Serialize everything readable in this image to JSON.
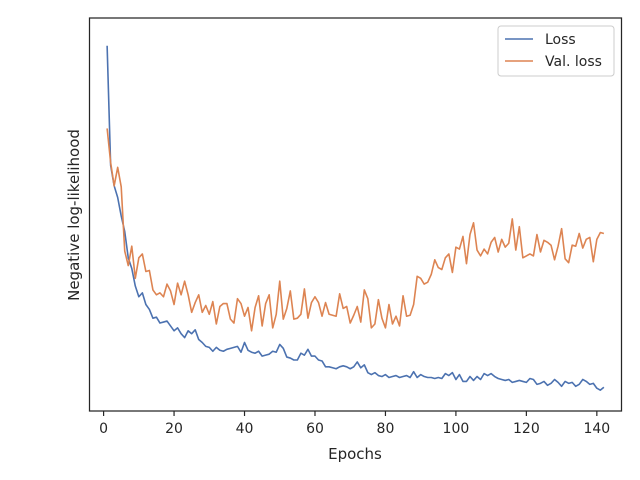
{
  "chart_data": {
    "type": "line",
    "title": "",
    "xlabel": "Epochs",
    "ylabel": "Negative log-likelihood",
    "xlim": [
      -4,
      147
    ],
    "ylim": [
      0,
      1
    ],
    "xticks": [
      0,
      20,
      40,
      60,
      80,
      100,
      120,
      140
    ],
    "yticks_shown": false,
    "grid": false,
    "legend_position": "top-right",
    "colors": {
      "Loss": "#4c72b0",
      "Val. loss": "#dd8452"
    },
    "x": [
      1,
      2,
      3,
      4,
      5,
      6,
      7,
      8,
      9,
      10,
      11,
      12,
      13,
      14,
      15,
      16,
      17,
      18,
      19,
      20,
      21,
      22,
      23,
      24,
      25,
      26,
      27,
      28,
      29,
      30,
      31,
      32,
      33,
      34,
      35,
      36,
      37,
      38,
      39,
      40,
      41,
      42,
      43,
      44,
      45,
      46,
      47,
      48,
      49,
      50,
      51,
      52,
      53,
      54,
      55,
      56,
      57,
      58,
      59,
      60,
      61,
      62,
      63,
      64,
      65,
      66,
      67,
      68,
      69,
      70,
      71,
      72,
      73,
      74,
      75,
      76,
      77,
      78,
      79,
      80,
      81,
      82,
      83,
      84,
      85,
      86,
      87,
      88,
      89,
      90,
      91,
      92,
      93,
      94,
      95,
      96,
      97,
      98,
      99,
      100,
      101,
      102,
      103,
      104,
      105,
      106,
      107,
      108,
      109,
      110,
      111,
      112,
      113,
      114,
      115,
      116,
      117,
      118,
      119,
      120,
      121,
      122,
      123,
      124,
      125,
      126,
      127,
      128,
      129,
      130,
      131,
      132,
      133,
      134,
      135,
      136,
      137,
      138,
      139,
      140,
      141,
      142
    ],
    "series": [
      {
        "name": "Loss",
        "values": [
          0.973,
          0.6405,
          0.5838,
          0.5514,
          0.5,
          0.4568,
          0.3838,
          0.3541,
          0.3054,
          0.2757,
          0.2865,
          0.2541,
          0.2405,
          0.2162,
          0.2189,
          0.2027,
          0.2054,
          0.2081,
          0.1946,
          0.1811,
          0.1892,
          0.173,
          0.1622,
          0.1811,
          0.173,
          0.1838,
          0.1568,
          0.1486,
          0.1378,
          0.1351,
          0.1243,
          0.1351,
          0.127,
          0.1243,
          0.1297,
          0.1324,
          0.1351,
          0.1378,
          0.1216,
          0.1486,
          0.127,
          0.1216,
          0.1189,
          0.1243,
          0.1108,
          0.1135,
          0.1162,
          0.1243,
          0.1216,
          0.1432,
          0.1324,
          0.1081,
          0.1054,
          0.1,
          0.1,
          0.1189,
          0.1135,
          0.1297,
          0.1108,
          0.1108,
          0.1,
          0.0973,
          0.0811,
          0.0811,
          0.0784,
          0.0757,
          0.0811,
          0.0838,
          0.0811,
          0.0757,
          0.0811,
          0.0946,
          0.0784,
          0.0865,
          0.0649,
          0.0595,
          0.0649,
          0.0568,
          0.0541,
          0.0595,
          0.0514,
          0.0541,
          0.0568,
          0.0514,
          0.0541,
          0.0568,
          0.0514,
          0.0676,
          0.0514,
          0.0595,
          0.0541,
          0.0514,
          0.0514,
          0.0486,
          0.0514,
          0.0486,
          0.0622,
          0.0568,
          0.0649,
          0.0459,
          0.0595,
          0.0405,
          0.0405,
          0.0541,
          0.0432,
          0.0541,
          0.0459,
          0.0622,
          0.0568,
          0.0622,
          0.0541,
          0.0486,
          0.0459,
          0.0432,
          0.0459,
          0.0378,
          0.0405,
          0.0432,
          0.0405,
          0.0378,
          0.0486,
          0.0459,
          0.0324,
          0.0351,
          0.0405,
          0.0297,
          0.0351,
          0.0459,
          0.0378,
          0.027,
          0.0405,
          0.0351,
          0.0378,
          0.027,
          0.0324,
          0.0459,
          0.0405,
          0.0324,
          0.0351,
          0.0216,
          0.0162,
          0.0243
        ]
      },
      {
        "name": "Val. loss",
        "values": [
          0.7432,
          0.6486,
          0.5838,
          0.6351,
          0.5811,
          0.4027,
          0.3622,
          0.4162,
          0.327,
          0.3838,
          0.3946,
          0.3459,
          0.3486,
          0.2946,
          0.2811,
          0.2865,
          0.2757,
          0.3108,
          0.2919,
          0.2541,
          0.3135,
          0.2811,
          0.3189,
          0.2811,
          0.2324,
          0.2595,
          0.2811,
          0.2324,
          0.2514,
          0.227,
          0.2622,
          0.2,
          0.2486,
          0.2568,
          0.2568,
          0.2135,
          0.2027,
          0.2703,
          0.2568,
          0.2216,
          0.2459,
          0.1811,
          0.2459,
          0.2784,
          0.1946,
          0.2568,
          0.2811,
          0.1892,
          0.227,
          0.3189,
          0.2135,
          0.2432,
          0.2919,
          0.2135,
          0.2162,
          0.227,
          0.2973,
          0.2162,
          0.2595,
          0.2757,
          0.2595,
          0.2216,
          0.2595,
          0.227,
          0.2243,
          0.2216,
          0.2838,
          0.2432,
          0.2486,
          0.2027,
          0.2243,
          0.2486,
          0.2054,
          0.2946,
          0.2703,
          0.1892,
          0.2,
          0.2676,
          0.2162,
          0.1892,
          0.2541,
          0.2,
          0.2216,
          0.1946,
          0.2784,
          0.2216,
          0.2243,
          0.2541,
          0.3324,
          0.327,
          0.3108,
          0.3162,
          0.3378,
          0.3784,
          0.3568,
          0.3514,
          0.3838,
          0.3946,
          0.3432,
          0.4135,
          0.4081,
          0.4432,
          0.3676,
          0.4486,
          0.4811,
          0.4054,
          0.3892,
          0.4081,
          0.3946,
          0.427,
          0.4405,
          0.4,
          0.4351,
          0.4135,
          0.4243,
          0.4919,
          0.4054,
          0.4703,
          0.3838,
          0.3892,
          0.3946,
          0.3892,
          0.4486,
          0.4,
          0.4324,
          0.427,
          0.4189,
          0.3784,
          0.4162,
          0.4649,
          0.3811,
          0.3703,
          0.4189,
          0.4162,
          0.4514,
          0.4108,
          0.4351,
          0.4405,
          0.373,
          0.4351,
          0.4541,
          0.4514
        ]
      }
    ]
  }
}
